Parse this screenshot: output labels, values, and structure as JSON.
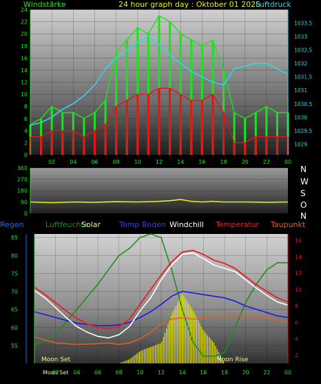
{
  "header": {
    "left_label": "Windstärke",
    "title": "24 hour graph day : Oktober 01 2025",
    "right_label": "Luftdruck"
  },
  "legend": {
    "regen": "Regen",
    "luftfeuchte": "Luftfeuchte",
    "solar": "Solar",
    "temp_boden": "Temp Boden",
    "windchill": "Windchill",
    "temperatur": "Temperatur",
    "taupunkt": "Taupunkt"
  },
  "moon": {
    "set": "Moon Set",
    "rise": "Moon Rise",
    "set_bottom": "Moon Set"
  },
  "compass": [
    "N",
    "W",
    "S",
    "O",
    "N"
  ],
  "colors": {
    "wind_gust": "#19e619",
    "wind_avg": "#e61414",
    "pressure": "#33d6e6",
    "direction": "#f0f000",
    "humidity": "#1e8c1e",
    "solar": "#f0f000",
    "soil_temp": "#1a1ae0",
    "windchill": "#ffffff",
    "temperature": "#e62020",
    "dewpoint": "#e06020",
    "axis_green": "#19e619",
    "axis_cyan": "#33d6e6",
    "axis_red": "#e61414"
  },
  "chart_data": [
    {
      "type": "line",
      "name": "wind",
      "x_ticks": [
        "02",
        "04",
        "06",
        "08",
        "10",
        "12",
        "14",
        "16",
        "18",
        "20",
        "22",
        "00"
      ],
      "y_left_ticks": [
        "0",
        "2",
        "4",
        "6",
        "8",
        "10",
        "12",
        "14",
        "16",
        "18",
        "20",
        "22",
        "24"
      ],
      "y_left_range": [
        0,
        24
      ],
      "y_right_ticks": [
        "1029",
        "1029,5",
        "1030",
        "1030,5",
        "1031",
        "1031,5",
        "1032",
        "1032,5",
        "1033",
        "1033,5"
      ],
      "y_right_range": [
        1028.6,
        1034
      ],
      "series": [
        {
          "key": "pressure",
          "x": [
            0,
            1,
            2,
            3,
            4,
            5,
            6,
            7,
            8,
            9,
            10,
            11,
            12,
            13,
            14,
            15,
            16,
            17,
            18,
            19,
            20,
            21,
            22,
            23,
            24
          ],
          "values": [
            1029.7,
            1029.8,
            1030.0,
            1030.3,
            1030.5,
            1030.8,
            1031.2,
            1031.8,
            1032.2,
            1032.5,
            1032.8,
            1033.0,
            1032.7,
            1032.3,
            1032.0,
            1031.7,
            1031.5,
            1031.3,
            1031.2,
            1031.8,
            1031.9,
            1032.0,
            1032.0,
            1031.8,
            1031.6
          ]
        },
        {
          "key": "wind_gust",
          "x": [
            0,
            1,
            2,
            3,
            4,
            5,
            6,
            7,
            8,
            9,
            10,
            11,
            12,
            13,
            14,
            15,
            16,
            17,
            18,
            19,
            20,
            21,
            22,
            23,
            24
          ],
          "values": [
            5,
            6,
            8,
            7,
            7,
            6,
            7,
            9,
            17,
            19,
            21,
            20,
            23,
            22,
            20,
            19,
            18,
            19,
            14,
            7,
            6,
            7,
            8,
            7,
            7
          ]
        },
        {
          "key": "wind_avg",
          "x": [
            0,
            1,
            2,
            3,
            4,
            5,
            6,
            7,
            8,
            9,
            10,
            11,
            12,
            13,
            14,
            15,
            16,
            17,
            18,
            19,
            20,
            21,
            22,
            23,
            24
          ],
          "values": [
            3,
            3,
            4,
            4,
            4,
            3,
            4,
            5,
            8,
            9,
            10,
            10,
            11,
            11,
            10,
            9,
            9,
            10,
            7,
            2,
            2,
            3,
            3,
            3,
            3
          ]
        }
      ]
    },
    {
      "type": "line",
      "name": "wind_direction",
      "y_ticks": [
        "0",
        "90",
        "180",
        "270",
        "360"
      ],
      "y_range": [
        0,
        360
      ],
      "series": [
        {
          "key": "direction",
          "x": [
            0,
            2,
            4,
            6,
            8,
            10,
            12,
            13,
            14,
            15,
            16,
            17,
            18,
            20,
            22,
            24
          ],
          "values": [
            90,
            85,
            90,
            88,
            92,
            90,
            95,
            100,
            110,
            95,
            90,
            95,
            90,
            90,
            88,
            90
          ]
        }
      ]
    },
    {
      "type": "line",
      "name": "temperature",
      "x_ticks": [
        "02",
        "04",
        "06",
        "08",
        "10",
        "12",
        "14",
        "16",
        "18",
        "20",
        "22",
        "00"
      ],
      "y_left_ticks": [
        "55",
        "60",
        "65",
        "70",
        "75",
        "80",
        "85"
      ],
      "y_left_range": [
        50,
        86
      ],
      "y_right_ticks": [
        "2",
        "4",
        "6",
        "8",
        "10",
        "12",
        "14",
        "16"
      ],
      "y_right_range": [
        1,
        16.8
      ],
      "series": [
        {
          "key": "humidity",
          "x": [
            0,
            2,
            4,
            6,
            7,
            8,
            9,
            10,
            11,
            12,
            13,
            14,
            15,
            16,
            17,
            18,
            19,
            20,
            21,
            22,
            23,
            24
          ],
          "values": [
            55,
            58,
            65,
            72,
            76,
            80,
            82,
            85,
            86,
            85,
            76,
            65,
            56,
            52,
            52,
            53,
            60,
            67,
            72,
            76,
            78,
            78
          ]
        },
        {
          "key": "soil_temp",
          "x": [
            0,
            2,
            4,
            6,
            7,
            8,
            9,
            10,
            11,
            12,
            13,
            14,
            15,
            16,
            17,
            18,
            19,
            20,
            21,
            22,
            23,
            24
          ],
          "values": [
            7.3,
            6.6,
            5.9,
            5.6,
            5.6,
            5.7,
            6.0,
            6.6,
            7.3,
            8.2,
            9.2,
            9.8,
            9.6,
            9.4,
            9.2,
            9.0,
            8.6,
            8.0,
            7.6,
            7.2,
            6.8,
            6.6
          ]
        },
        {
          "key": "temperature",
          "x": [
            0,
            1,
            2,
            3,
            4,
            5,
            6,
            7,
            8,
            9,
            10,
            11,
            12,
            13,
            14,
            15,
            16,
            17,
            18,
            19,
            20,
            21,
            22,
            23,
            24
          ],
          "values": [
            10.3,
            9.4,
            8.4,
            7.4,
            6.5,
            5.8,
            5.4,
            5.2,
            5.5,
            6.4,
            8.2,
            10.0,
            11.8,
            13.4,
            14.6,
            14.8,
            14.3,
            13.6,
            13.2,
            12.6,
            11.6,
            10.6,
            9.8,
            9.0,
            8.5
          ]
        },
        {
          "key": "windchill",
          "x": [
            0,
            1,
            2,
            3,
            4,
            5,
            6,
            7,
            8,
            9,
            10,
            11,
            12,
            13,
            14,
            15,
            16,
            17,
            18,
            19,
            20,
            21,
            22,
            23,
            24
          ],
          "values": [
            9.9,
            9.0,
            7.8,
            6.6,
            5.5,
            4.8,
            4.3,
            4.1,
            4.5,
            5.5,
            7.4,
            9.0,
            11.2,
            13.0,
            14.3,
            14.5,
            13.8,
            13.0,
            12.6,
            12.2,
            11.2,
            10.2,
            9.3,
            8.5,
            8.1
          ]
        },
        {
          "key": "dewpoint",
          "x": [
            0,
            2,
            4,
            6,
            7,
            8,
            9,
            10,
            11,
            12,
            13,
            14,
            15,
            16,
            17,
            18,
            19,
            20,
            21,
            22,
            23,
            24
          ],
          "values": [
            4.2,
            3.5,
            3.3,
            3.4,
            3.5,
            3.3,
            3.5,
            4.0,
            4.8,
            5.8,
            6.4,
            6.6,
            6.4,
            6.5,
            6.8,
            6.8,
            6.9,
            6.8,
            6.8,
            6.6,
            6.3,
            6.0
          ]
        },
        {
          "key": "solar",
          "x": [
            0,
            8,
            9,
            10,
            11,
            12,
            13,
            14,
            15,
            16,
            17,
            18,
            24
          ],
          "values": [
            0,
            0,
            0.5,
            1.5,
            2,
            2.5,
            6,
            8.5,
            6.5,
            4,
            2.5,
            0,
            0
          ]
        }
      ]
    }
  ]
}
